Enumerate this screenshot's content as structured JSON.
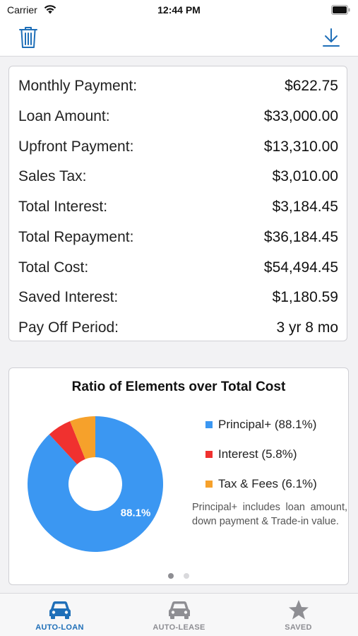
{
  "status_bar": {
    "carrier": "Carrier",
    "time": "12:44 PM"
  },
  "toolbar": {
    "left_icon": "trash-icon",
    "right_icon": "download-icon",
    "accent_color": "#1f6fb8"
  },
  "summary": {
    "rows": [
      {
        "label": "Monthly Payment:",
        "value": "$622.75"
      },
      {
        "label": "Loan Amount:",
        "value": "$33,000.00"
      },
      {
        "label": "Upfront Payment:",
        "value": "$13,310.00"
      },
      {
        "label": "Sales Tax:",
        "value": "$3,010.00"
      },
      {
        "label": "Total Interest:",
        "value": "$3,184.45"
      },
      {
        "label": "Total Repayment:",
        "value": "$36,184.45"
      },
      {
        "label": "Total Cost:",
        "value": "$54,494.45"
      },
      {
        "label": "Saved Interest:",
        "value": "$1,180.59"
      },
      {
        "label": "Pay Off Period:",
        "value": "3 yr 8 mo"
      }
    ]
  },
  "chart_data": {
    "type": "pie",
    "title": "Ratio of Elements over Total Cost",
    "categories": [
      "Principal+",
      "Interest",
      "Tax & Fees"
    ],
    "values": [
      88.1,
      5.8,
      6.1
    ],
    "legend_labels": [
      "Principal+ (88.1%)",
      "Interest (5.8%)",
      "Tax & Fees (6.1%)"
    ],
    "colors": [
      "#3b97f2",
      "#f0312f",
      "#f6a12b"
    ],
    "slice_labels": [
      "88.1%",
      "",
      ""
    ],
    "legend_position": "right",
    "donut": true
  },
  "chart_note": "Principal+ includes loan amount, down payment & Trade-in value.",
  "pager": {
    "count": 2,
    "active": 0
  },
  "tabs": [
    {
      "label": "AUTO-LOAN",
      "icon": "car-icon",
      "active": true
    },
    {
      "label": "AUTO-LEASE",
      "icon": "car-icon",
      "active": false
    },
    {
      "label": "SAVED",
      "icon": "star-icon",
      "active": false
    }
  ],
  "colors": {
    "tab_active": "#1f6fb8",
    "tab_inactive": "#8e8e93"
  }
}
